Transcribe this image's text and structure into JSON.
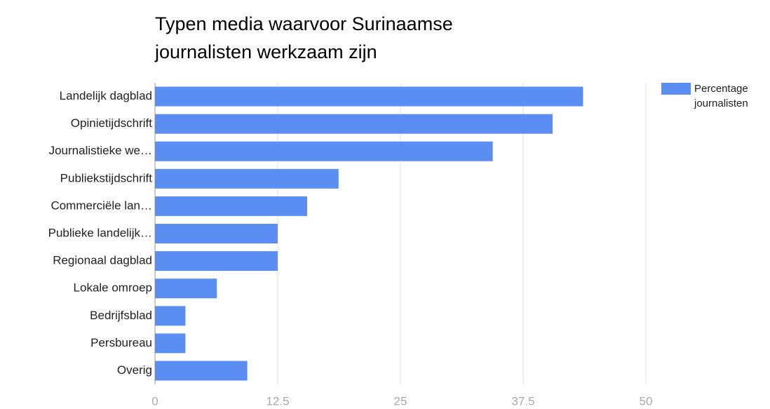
{
  "chart_data": {
    "type": "bar",
    "orientation": "horizontal",
    "title": "Typen media waarvoor Surinaamse journalisten werkzaam zijn",
    "categories": [
      "Landelijk dagblad",
      "Opinietijdschrift",
      "Journalistieke we…",
      "Publiekstijdschrift",
      "Commerciële lan…",
      "Publieke landelijk…",
      "Regionaal dagblad",
      "Lokale omroep",
      "Bedrijfsblad",
      "Persbureau",
      "Overig"
    ],
    "series": [
      {
        "name": "Percentage journalisten",
        "color": "#5b8ef2",
        "values": [
          43.6,
          40.5,
          34.4,
          18.7,
          15.5,
          12.5,
          12.5,
          6.3,
          3.1,
          3.1,
          9.4
        ]
      }
    ],
    "xlim": [
      0,
      50
    ],
    "xticks": [
      0,
      12.5,
      25,
      37.5,
      50
    ],
    "grid": true,
    "legend": "right"
  }
}
